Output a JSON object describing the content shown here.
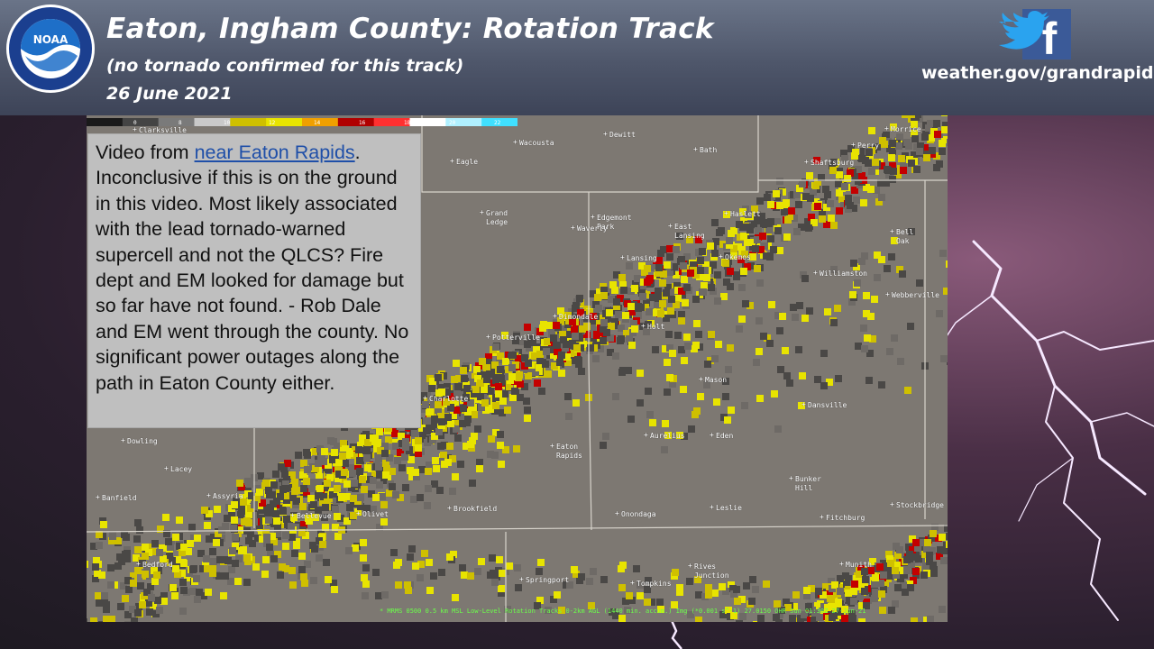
{
  "header": {
    "title": "Eaton, Ingham County: Rotation Track",
    "subtitle": "(no tornado confirmed for this track)",
    "date": "26 June 2021",
    "website": "weather.gov/grandrapids",
    "logo_text": "NOAA",
    "logo_ring_text": "NATIONAL OCEANIC AND ATMOSPHERIC ADMINISTRATION · U.S. DEPARTMENT OF COMMERCE",
    "social_icons": [
      "twitter-icon",
      "facebook-icon"
    ]
  },
  "colorbar": {
    "labels": [
      "0",
      "8",
      "10",
      "12",
      "14",
      "16",
      "18",
      "20",
      "22",
      "24"
    ],
    "colors": [
      "#1a1a1a",
      "#444444",
      "#7a7a7a",
      "#c9c9c9",
      "#cfc000",
      "#e8e400",
      "#f0a000",
      "#b00000",
      "#ff3030",
      "#ffffff",
      "#b0f0ff",
      "#40e0ff"
    ]
  },
  "caption": {
    "before_link": "Video from ",
    "link": "near Eaton Rapids",
    "after_link": ". Inconclusive if this is on the ground in this video.  Most likely associated with the lead tornado-warned supercell and not the QLCS? Fire dept and EM looked for damage but so far have not found. - Rob Dale and EM went through the county.  No significant power outages along the path in Eaton County either."
  },
  "towns": [
    "Clarksville",
    "Wacousta",
    "Dewitt",
    "Bath",
    "Eagle",
    "Morrice",
    "Perry",
    "Shaftsburg",
    "Grand\nLedge",
    "Edgemont\nPark",
    "Waverly",
    "East\nLansing",
    "Haslett",
    "Lansing",
    "Okemos",
    "Bell\nOak",
    "Williamston",
    "Webberville",
    "Dimondale",
    "Holt",
    "Potterville",
    "Mason",
    "Charlotte",
    "Dansville",
    "Aurelius",
    "Eden",
    "Dowling",
    "Eaton\nRapids",
    "Lacey",
    "Bunker\nHill",
    "Banfield",
    "Assyria",
    "Bellevue",
    "Olivet",
    "Brookfield",
    "Onondaga",
    "Leslie",
    "Fitchburg",
    "Stockbridge",
    "Bedford",
    "Springport",
    "Tompkins",
    "Rives\nJunction",
    "Munith"
  ],
  "footer_text": "* MRMS 0500 0.5 km MSL Low-Level Rotation Tracks 0-2km AGL (1440 min. accum.) Img (*0.001 s^-1)     27.0150    OHR Sun 01:30Z 27-Jun-21"
}
